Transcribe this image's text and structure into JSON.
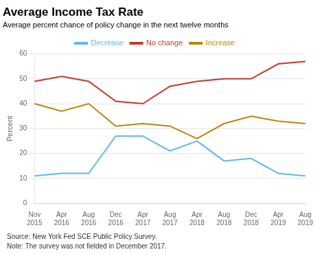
{
  "chart_data": {
    "type": "line",
    "title": "Average Income Tax Rate",
    "subtitle": "Average percent chance of policy change in the next twelve months",
    "ylabel": "Percent",
    "annotations": [
      "Source: New York Fed SCE Public Policy Survey.",
      "Note: The survey was not fielded in December 2017."
    ],
    "categories": [
      "Nov\n2015",
      "Apr\n2016",
      "Aug\n2016",
      "Dec\n2016",
      "Apr\n2017",
      "Aug\n2017",
      "Apr\n2018",
      "Aug\n2018",
      "Dec\n2018",
      "Apr\n2019",
      "Aug\n2019"
    ],
    "series": [
      {
        "name": "Decrease",
        "color": "#5bb8e8",
        "values": [
          11,
          12,
          12,
          27,
          27,
          21,
          25,
          17,
          18,
          12,
          11
        ]
      },
      {
        "name": "No change",
        "color": "#c0392b",
        "values": [
          49,
          51,
          49,
          41,
          40,
          47,
          49,
          50,
          50,
          56,
          57
        ]
      },
      {
        "name": "Increase",
        "color": "#b8860b",
        "values": [
          40,
          37,
          40,
          31,
          32,
          31,
          26,
          32,
          35,
          33,
          32
        ]
      }
    ],
    "ylim": [
      0,
      60
    ],
    "yticks": [
      0,
      10,
      20,
      30,
      40,
      50,
      60
    ],
    "grid": true,
    "legend": "top"
  }
}
